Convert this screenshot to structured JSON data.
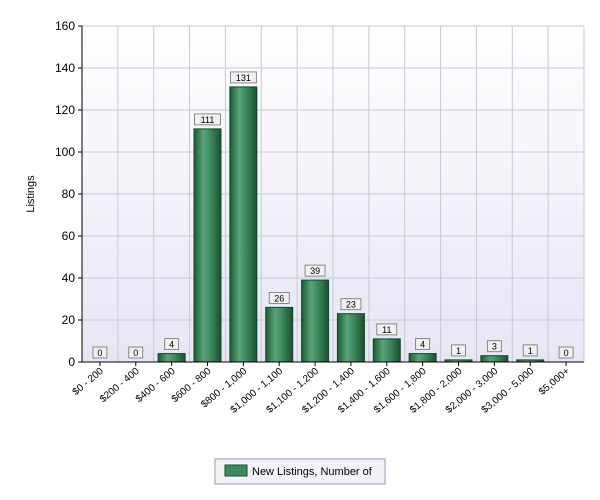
{
  "chart_data": {
    "type": "bar",
    "title": "",
    "xlabel": "",
    "ylabel": "Listings",
    "ylim": [
      0,
      160
    ],
    "yticks": [
      0,
      20,
      40,
      60,
      80,
      100,
      120,
      140,
      160
    ],
    "grid": true,
    "legend_position": "bottom-center",
    "categories": [
      "$0 - 200",
      "$200 - 400",
      "$400 - 600",
      "$600 - 800",
      "$800 - 1,000",
      "$1,000 - 1,100",
      "$1,100 - 1,200",
      "$1,200 - 1,400",
      "$1,400 - 1,600",
      "$1,600 - 1,800",
      "$1,800 - 2,000",
      "$2,000 - 3,000",
      "$3,000 - 5,000",
      "$5,000+"
    ],
    "series": [
      {
        "name": "New Listings, Number of",
        "color": "#3d8a5e",
        "values": [
          0,
          0,
          4,
          111,
          131,
          26,
          39,
          23,
          11,
          4,
          1,
          3,
          1,
          0
        ]
      }
    ]
  }
}
